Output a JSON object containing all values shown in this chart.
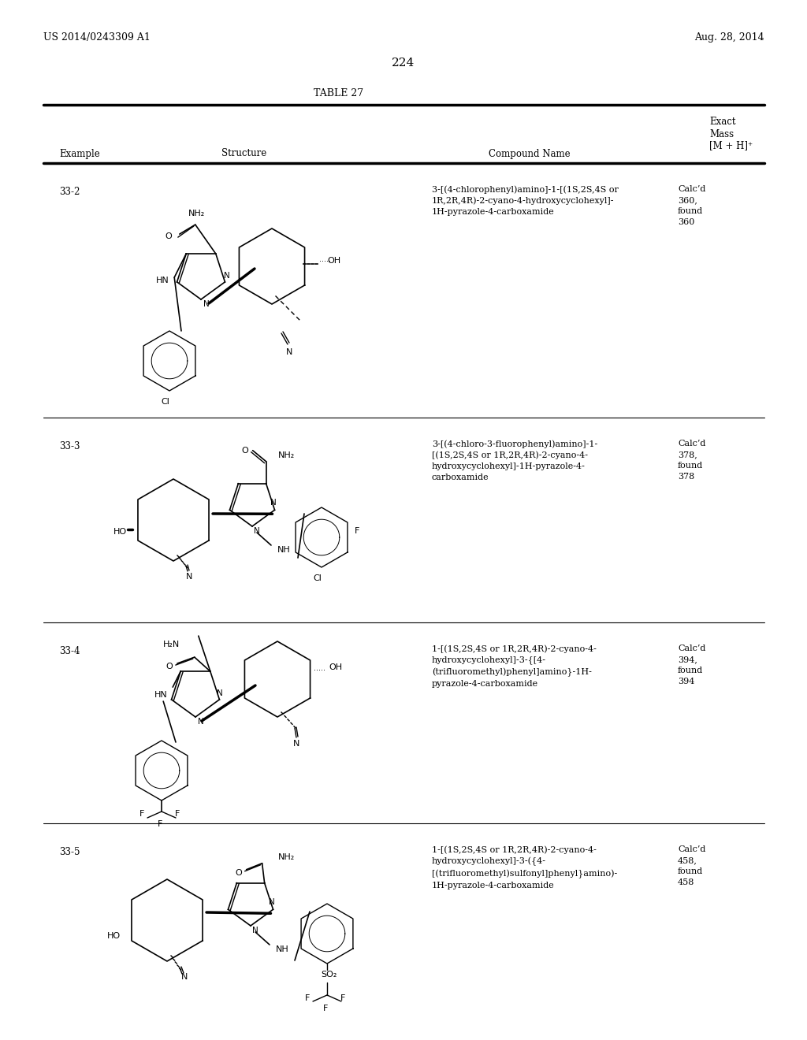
{
  "page_left": "US 2014/0243309 A1",
  "page_right": "Aug. 28, 2014",
  "page_number": "224",
  "table_title": "TABLE 27",
  "col_headers": [
    "Example",
    "Structure",
    "Compound Name",
    "Exact\nMass\n[M + H]+"
  ],
  "rows": [
    {
      "example": "33-2",
      "compound_name": "3-[(4-chlorophenyl)amino]-1-[(1S,2S,4S or\n1R,2R,4R)-2-cyano-4-hydroxycyclohexyl]-\n1H-pyrazole-4-carboxamide",
      "exact_mass": "Calc’d\n360,\nfound\n360"
    },
    {
      "example": "33-3",
      "compound_name": "3-[(4-chloro-3-fluorophenyl)amino]-1-\n[(1S,2S,4S or 1R,2R,4R)-2-cyano-4-\nhydroxycyclohexyl]-1H-pyrazole-4-\ncarboxamide",
      "exact_mass": "Calc’d\n378,\nfound\n378"
    },
    {
      "example": "33-4",
      "compound_name": "1-[(1S,2S,4S or 1R,2R,4R)-2-cyano-4-\nhydroxycyclohexyl]-3-{[4-\n(trifluoromethyl)phenyl]amino}-1H-\npyrazole-4-carboxamide",
      "exact_mass": "Calc’d\n394,\nfound\n394"
    },
    {
      "example": "33-5",
      "compound_name": "1-[(1S,2S,4S or 1R,2R,4R)-2-cyano-4-\nhydroxycyclohexyl]-3-({4-\n[(trifluoromethyl)sulfonyl]phenyl}amino)-\n1H-pyrazole-4-carboxamide",
      "exact_mass": "Calc’d\n458,\nfound\n458"
    }
  ],
  "background_color": "#ffffff",
  "text_color": "#000000"
}
